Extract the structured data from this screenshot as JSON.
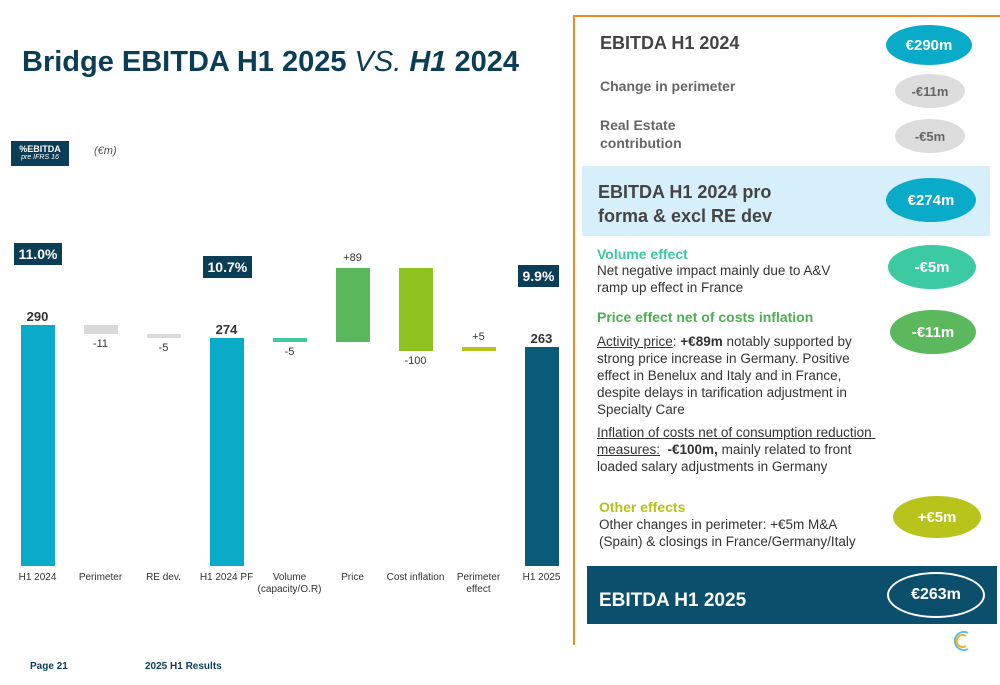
{
  "slide_title": {
    "main": "Bridge EBITDA H1 2025",
    "vs": "VS.",
    "h1": "H1",
    "year": "2024"
  },
  "chart_data": {
    "type": "waterfall",
    "legend_box": {
      "title": "%EBITDA",
      "subtitle": "pre IFRS 16"
    },
    "unit": "(€m)",
    "categories": [
      "H1 2024",
      "Perimeter",
      "RE dev.",
      "H1 2024 PF",
      "Volume (capacity/O.R)",
      "Price",
      "Cost inflation",
      "Perimeter effect",
      "H1 2025"
    ],
    "values": [
      290,
      -11,
      -5,
      274,
      -5,
      89,
      -100,
      5,
      263
    ],
    "value_labels": [
      "290",
      "-11",
      "-5",
      "274",
      "-5",
      "+89",
      "-100",
      "+5",
      "263"
    ],
    "is_total": [
      true,
      false,
      false,
      true,
      false,
      false,
      false,
      false,
      true
    ],
    "colors": [
      "#0aabc9",
      "#d9d9d9",
      "#d9d9d9",
      "#0aabc9",
      "#3ccaa3",
      "#5cb85c",
      "#8dc21f",
      "#b8c41c",
      "#0b5a78"
    ],
    "margin_labels": [
      "11.0%",
      null,
      null,
      "10.7%",
      null,
      null,
      null,
      null,
      "9.9%"
    ],
    "ylim": [
      0,
      370
    ]
  },
  "panel": {
    "start": {
      "title": "EBITDA H1 2024",
      "badge": "€290m"
    },
    "adjustments": [
      {
        "label": "Change in perimeter",
        "badge": "-€11m"
      },
      {
        "label": "Real Estate contribution",
        "badge": "-€5m"
      }
    ],
    "pro_forma": {
      "title": "EBITDA H1 2024 pro forma & excl RE dev",
      "badge": "€274m"
    },
    "volume": {
      "title": "Volume effect",
      "text": "Net negative impact mainly due to A&V ramp up effect in France",
      "badge": "-€5m"
    },
    "price": {
      "title": "Price effect net of costs inflation",
      "badge": "-€11m",
      "activity": {
        "lead": "Activity price",
        "colon": ":",
        "amount": " +€89m",
        "rest": " notably supported by strong price increase in Germany. Positive effect in Benelux and Italy and in France, despite delays in tarification adjustment in Specialty Care"
      },
      "inflation": {
        "lead": "Inflation of costs net of consumption reduction measures:",
        "amount": "  -€100m,",
        "rest": " mainly related to front loaded salary adjustments in Germany"
      }
    },
    "other": {
      "title": "Other effects",
      "text": "Other changes in perimeter: +€5m  M&A (Spain) & closings in France/Germany/Italy",
      "badge": "+€5m"
    },
    "end": {
      "title": "EBITDA H1 2025",
      "badge": "€263m"
    }
  },
  "footer": {
    "page": "Page 21",
    "deck": "2025 H1 Results"
  }
}
